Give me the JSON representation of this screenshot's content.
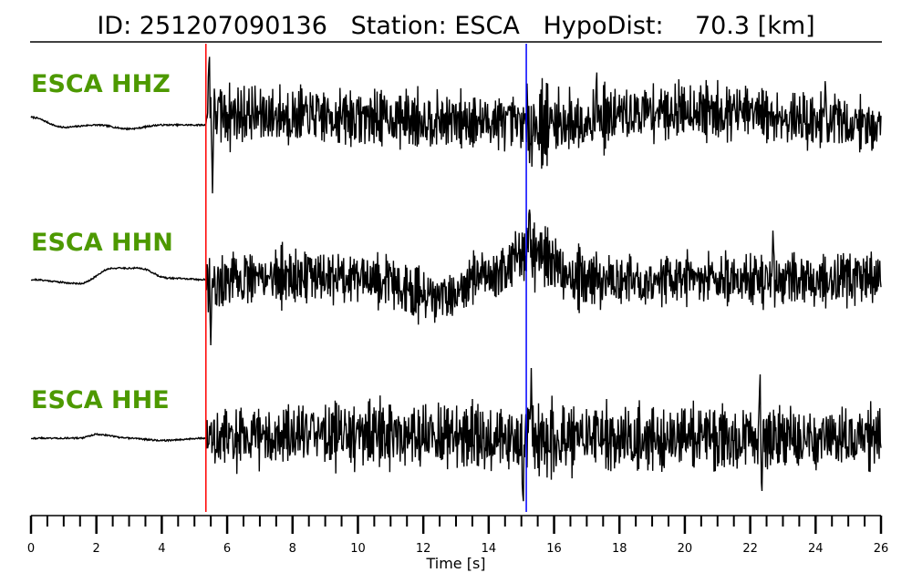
{
  "title": {
    "id_label": "ID:",
    "id_value": "251207090136",
    "station_label": "Station:",
    "station_value": "ESCA",
    "hypodist_label": "HypoDist:",
    "hypodist_value": "70.3",
    "hypodist_unit": "[km]"
  },
  "colors": {
    "trace": "#000000",
    "label": "#4d9900",
    "p_pick": "#ff0000",
    "s_pick": "#0000ff",
    "axis": "#000000"
  },
  "chart_data": {
    "type": "line",
    "title": "ID: 251207090136   Station: ESCA   HypoDist:    70.3 [km]",
    "xlabel": "Time [s]",
    "ylabel": "",
    "xlim": [
      0,
      26
    ],
    "xticks": [
      0,
      2,
      4,
      6,
      8,
      10,
      12,
      14,
      16,
      18,
      20,
      22,
      24,
      26
    ],
    "minor_tick_step": 0.5,
    "grid": false,
    "p_pick_time": 5.35,
    "s_pick_time": 15.15,
    "series": [
      {
        "name": "ESCA HHZ",
        "baseline": 0.0,
        "noise_shape": [
          [
            0,
            0.05
          ],
          [
            1.0,
            -0.08
          ],
          [
            2.0,
            -0.05
          ],
          [
            3.0,
            -0.1
          ],
          [
            4.0,
            -0.05
          ],
          [
            5.35,
            -0.05
          ]
        ],
        "p_amp": 0.55,
        "s_amp": 0.62,
        "coda_amp": 0.42,
        "drift": [
          [
            5.35,
            0.1
          ],
          [
            10,
            0.05
          ],
          [
            14,
            0.0
          ],
          [
            15.15,
            -0.05
          ],
          [
            20,
            0.15
          ],
          [
            26,
            -0.05
          ]
        ],
        "spikes": [
          [
            5.45,
            1.0
          ],
          [
            5.55,
            -1.0
          ],
          [
            17.3,
            0.7
          ],
          [
            24.3,
            0.6
          ]
        ],
        "seed": 7
      },
      {
        "name": "ESCA HHN",
        "baseline": 0.0,
        "noise_shape": [
          [
            0,
            0.0
          ],
          [
            1.5,
            -0.05
          ],
          [
            2.5,
            0.15
          ],
          [
            3.3,
            0.15
          ],
          [
            4.2,
            0.02
          ],
          [
            5.35,
            0.0
          ]
        ],
        "p_amp": 0.45,
        "s_amp": 0.55,
        "coda_amp": 0.4,
        "drift": [
          [
            5.35,
            -0.05
          ],
          [
            8.0,
            0.05
          ],
          [
            10.0,
            0.05
          ],
          [
            12.5,
            -0.25
          ],
          [
            14.0,
            0.05
          ],
          [
            15.15,
            0.35
          ],
          [
            17.0,
            0.0
          ],
          [
            26,
            0.0
          ]
        ],
        "spikes": [
          [
            5.5,
            -0.9
          ],
          [
            15.25,
            1.0
          ],
          [
            22.7,
            0.7
          ]
        ],
        "seed": 21
      },
      {
        "name": "ESCA HHE",
        "baseline": 0.0,
        "noise_shape": [
          [
            0,
            0.0
          ],
          [
            1.5,
            0.0
          ],
          [
            2.0,
            0.05
          ],
          [
            3.0,
            0.0
          ],
          [
            4.0,
            -0.03
          ],
          [
            5.35,
            0.0
          ]
        ],
        "p_amp": 0.45,
        "s_amp": 0.6,
        "coda_amp": 0.48,
        "drift": [
          [
            5.35,
            0.0
          ],
          [
            10,
            0.05
          ],
          [
            15.15,
            0.0
          ],
          [
            26,
            0.0
          ]
        ],
        "spikes": [
          [
            15.05,
            -1.0
          ],
          [
            15.3,
            1.0
          ],
          [
            22.3,
            0.9
          ],
          [
            22.35,
            -0.85
          ]
        ],
        "seed": 43
      }
    ]
  }
}
